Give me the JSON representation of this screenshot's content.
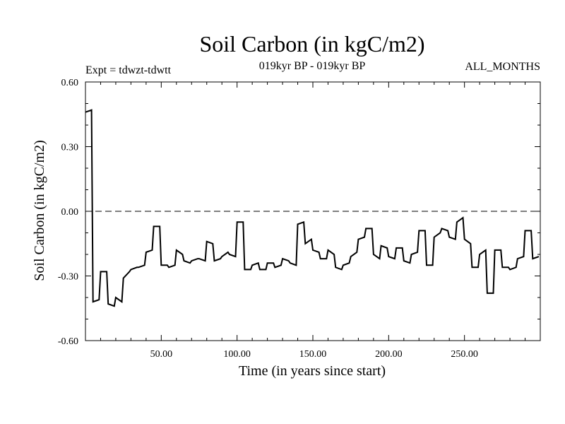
{
  "chart_data": {
    "type": "line",
    "title": "Soil Carbon (in kgC/m2)",
    "subtitle": "019kyr BP - 019kyr BP",
    "left_note": "Expt = tdwzt-tdwtt",
    "right_note": "ALL_MONTHS",
    "xlabel": "Time (in years since start)",
    "ylabel": "Soil Carbon (in kgC/m2)",
    "xlim": [
      0,
      300
    ],
    "ylim": [
      -0.6,
      0.6
    ],
    "x_ticks": [
      50,
      100,
      150,
      200,
      250
    ],
    "x_tick_labels": [
      "50.00",
      "100.00",
      "150.00",
      "200.00",
      "250.00"
    ],
    "y_ticks": [
      -0.6,
      -0.3,
      0.0,
      0.3,
      0.6
    ],
    "y_tick_labels": [
      "-0.60",
      "-0.30",
      "0.00",
      "0.30",
      "0.60"
    ],
    "reference_line": {
      "y": 0.0,
      "style": "dashed"
    },
    "series": [
      {
        "x": [
          0,
          4,
          5,
          9,
          10,
          14,
          15,
          19,
          20,
          24,
          25,
          29,
          30,
          34,
          35,
          39,
          40,
          44,
          45,
          49,
          50,
          54,
          55,
          59,
          60,
          64,
          65,
          69,
          70,
          74,
          75,
          79,
          80,
          84,
          85,
          89,
          90,
          94,
          95,
          99,
          100,
          104,
          105,
          109,
          110,
          114,
          115,
          119,
          120,
          124,
          125,
          129,
          130,
          134,
          135,
          139,
          140,
          144,
          145,
          149,
          150,
          154,
          155,
          159,
          160,
          164,
          165,
          169,
          170,
          174,
          175,
          179,
          180,
          184,
          185,
          189,
          190,
          194,
          195,
          199,
          200,
          204,
          205,
          209,
          210,
          214,
          215,
          219,
          220,
          224,
          225,
          229,
          230,
          234,
          235,
          239,
          240,
          244,
          245,
          249,
          250,
          254,
          255,
          259,
          260,
          264,
          265,
          269,
          270,
          274,
          275,
          279,
          280,
          284,
          285,
          289,
          290,
          294,
          295,
          299
        ],
        "y": [
          0.46,
          0.47,
          -0.42,
          -0.41,
          -0.28,
          -0.28,
          -0.43,
          -0.44,
          -0.4,
          -0.42,
          -0.31,
          -0.28,
          -0.27,
          -0.26,
          -0.26,
          -0.25,
          -0.19,
          -0.18,
          -0.07,
          -0.07,
          -0.25,
          -0.25,
          -0.26,
          -0.25,
          -0.18,
          -0.2,
          -0.23,
          -0.24,
          -0.23,
          -0.22,
          -0.22,
          -0.23,
          -0.14,
          -0.15,
          -0.23,
          -0.22,
          -0.21,
          -0.19,
          -0.2,
          -0.21,
          -0.05,
          -0.05,
          -0.27,
          -0.27,
          -0.25,
          -0.24,
          -0.27,
          -0.27,
          -0.24,
          -0.24,
          -0.26,
          -0.25,
          -0.22,
          -0.23,
          -0.24,
          -0.25,
          -0.06,
          -0.05,
          -0.15,
          -0.13,
          -0.18,
          -0.19,
          -0.22,
          -0.22,
          -0.18,
          -0.2,
          -0.26,
          -0.27,
          -0.25,
          -0.24,
          -0.21,
          -0.19,
          -0.13,
          -0.12,
          -0.08,
          -0.08,
          -0.2,
          -0.22,
          -0.16,
          -0.17,
          -0.21,
          -0.22,
          -0.17,
          -0.17,
          -0.23,
          -0.24,
          -0.2,
          -0.19,
          -0.09,
          -0.09,
          -0.25,
          -0.25,
          -0.12,
          -0.1,
          -0.08,
          -0.09,
          -0.12,
          -0.13,
          -0.05,
          -0.03,
          -0.13,
          -0.15,
          -0.26,
          -0.26,
          -0.2,
          -0.18,
          -0.38,
          -0.38,
          -0.18,
          -0.18,
          -0.26,
          -0.26,
          -0.27,
          -0.26,
          -0.22,
          -0.21,
          -0.09,
          -0.09,
          -0.22,
          -0.21
        ]
      }
    ]
  }
}
